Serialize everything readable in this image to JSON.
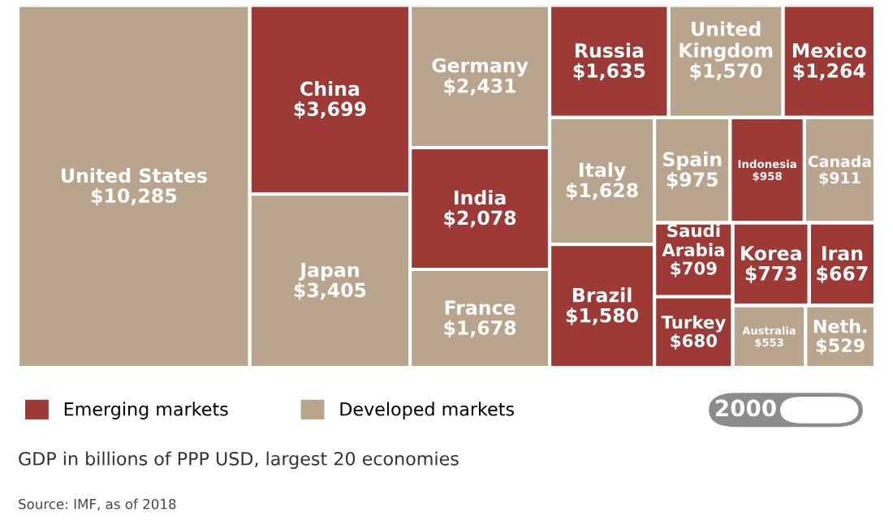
{
  "chart_data": {
    "type": "other",
    "subtitle": "GDP in billions of PPP USD, largest 20 economies",
    "categories": [
      "United States",
      "China",
      "Japan",
      "Germany",
      "India",
      "France",
      "Russia",
      "United Kingdom",
      "Mexico",
      "Italy",
      "Brazil",
      "Spain",
      "Indonesia",
      "Canada",
      "Saudi Arabia",
      "Turkey",
      "Korea",
      "Iran",
      "Australia",
      "Neth."
    ],
    "series": [
      {
        "name": "Emerging markets",
        "color": "#9e3a36",
        "values": [
          null,
          3699,
          null,
          null,
          2078,
          null,
          1635,
          null,
          1264,
          null,
          1580,
          null,
          958,
          null,
          709,
          680,
          773,
          667,
          null,
          null
        ],
        "value_labels": [
          null,
          "$3,699",
          null,
          null,
          "$2,078",
          null,
          "$1,635",
          null,
          "$1,264",
          null,
          "$1,580",
          null,
          "$958",
          null,
          "$709",
          "$680",
          "$773",
          "$667",
          null,
          null
        ]
      },
      {
        "name": "Developed markets",
        "color": "#b9a58e",
        "values": [
          10285,
          null,
          3405,
          2431,
          null,
          1678,
          null,
          1570,
          null,
          1628,
          null,
          975,
          null,
          911,
          null,
          null,
          null,
          null,
          553,
          529
        ],
        "value_labels": [
          "$10,285",
          null,
          "$3,405",
          "$2,431",
          null,
          "$1,678",
          null,
          "$1,570",
          null,
          "$1,628",
          null,
          "$975",
          null,
          "$911",
          null,
          null,
          null,
          null,
          "$553",
          "$529"
        ]
      }
    ],
    "legend": "bottom left",
    "annotations": [
      "2000",
      "Source: IMF, as of 2018"
    ]
  }
}
